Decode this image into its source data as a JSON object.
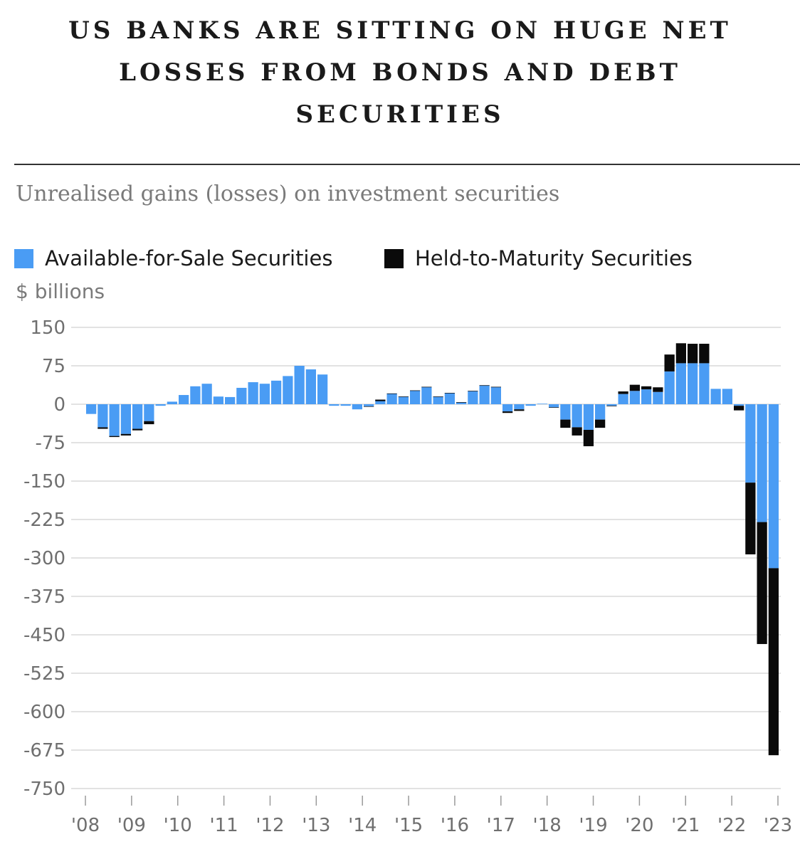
{
  "title": "US BANKS ARE SITTING ON HUGE NET LOSSES FROM BONDS AND DEBT SECURITIES",
  "subtitle": "Unrealised gains (losses) on investment securities",
  "colors": {
    "afs": "#4a9cf4",
    "htm": "#0a0a0a",
    "grid": "#d9d9d9",
    "tick_text": "#6f6f6f"
  },
  "chart_data": {
    "type": "bar",
    "stacked": true,
    "title": "Unrealised gains (losses) on investment securities",
    "ylabel": "$ billions",
    "ylim": [
      -750,
      150
    ],
    "yticks": [
      150,
      75,
      0,
      -75,
      -150,
      -225,
      -300,
      -375,
      -450,
      -525,
      -600,
      -675,
      -750
    ],
    "ytick_labels": [
      "150",
      "75",
      "0",
      "-75",
      "-150",
      "-225",
      "-300",
      "-375",
      "-450",
      "-525",
      "-600",
      "-675",
      "-750"
    ],
    "xtick_labels": [
      "'08",
      "'09",
      "'10",
      "'11",
      "'12",
      "'13",
      "'14",
      "'15",
      "'16",
      "'17",
      "'18",
      "'19",
      "'20",
      "'21",
      "'22",
      "'23"
    ],
    "legend": [
      "Available-for-Sale Securities",
      "Held-to-Maturity Securities"
    ],
    "categories": [
      "2008Q1",
      "2008Q2",
      "2008Q3",
      "2008Q4",
      "2009Q1",
      "2009Q2",
      "2009Q3",
      "2009Q4",
      "2010Q1",
      "2010Q2",
      "2010Q3",
      "2010Q4",
      "2011Q1",
      "2011Q2",
      "2011Q3",
      "2011Q4",
      "2012Q1",
      "2012Q2",
      "2012Q3",
      "2012Q4",
      "2013Q1",
      "2013Q2",
      "2013Q3",
      "2013Q4",
      "2014Q1",
      "2014Q2",
      "2014Q3",
      "2014Q4",
      "2015Q1",
      "2015Q2",
      "2015Q3",
      "2015Q4",
      "2016Q1",
      "2016Q2",
      "2016Q3",
      "2016Q4",
      "2017Q1",
      "2017Q2",
      "2017Q3",
      "2017Q4",
      "2018Q1",
      "2018Q2",
      "2018Q3",
      "2018Q4",
      "2019Q1",
      "2019Q2",
      "2019Q3",
      "2019Q4",
      "2020Q1",
      "2020Q2",
      "2020Q3",
      "2020Q4",
      "2021Q1",
      "2021Q2",
      "2021Q3",
      "2021Q4",
      "2022Q1",
      "2022Q2",
      "2022Q3",
      "2022Q4"
    ],
    "series": [
      {
        "name": "Available-for-Sale Securities",
        "values": [
          -19,
          -45,
          -62,
          -58,
          -48,
          -33,
          -3,
          5,
          18,
          35,
          40,
          15,
          14,
          32,
          43,
          40,
          46,
          55,
          75,
          68,
          58,
          -3,
          -3,
          -10,
          -4,
          9,
          21,
          15,
          27,
          34,
          15,
          22,
          4,
          26,
          37,
          34,
          -14,
          -10,
          -3,
          1,
          -6,
          -30,
          -45,
          -50,
          -30,
          -3,
          20,
          26,
          29,
          24,
          64,
          80,
          80,
          80,
          30,
          30,
          -3,
          -153,
          -230,
          -320
        ]
      },
      {
        "name": "Held-to-Maturity Securities",
        "values": [
          0,
          -3,
          -2,
          -3,
          -3,
          -6,
          0,
          0,
          0,
          0,
          0,
          0,
          0,
          0,
          0,
          0,
          0,
          0,
          0,
          0,
          0,
          0,
          0,
          0,
          -1,
          -3,
          -1,
          -1,
          -1,
          -1,
          -1,
          -1,
          -1,
          -1,
          -1,
          -1,
          -3,
          -3,
          0,
          0,
          -1,
          -16,
          -16,
          -32,
          -16,
          -1,
          5,
          12,
          6,
          9,
          33,
          39,
          38,
          38,
          0,
          0,
          -9,
          -140,
          -238,
          -365
        ]
      }
    ]
  }
}
